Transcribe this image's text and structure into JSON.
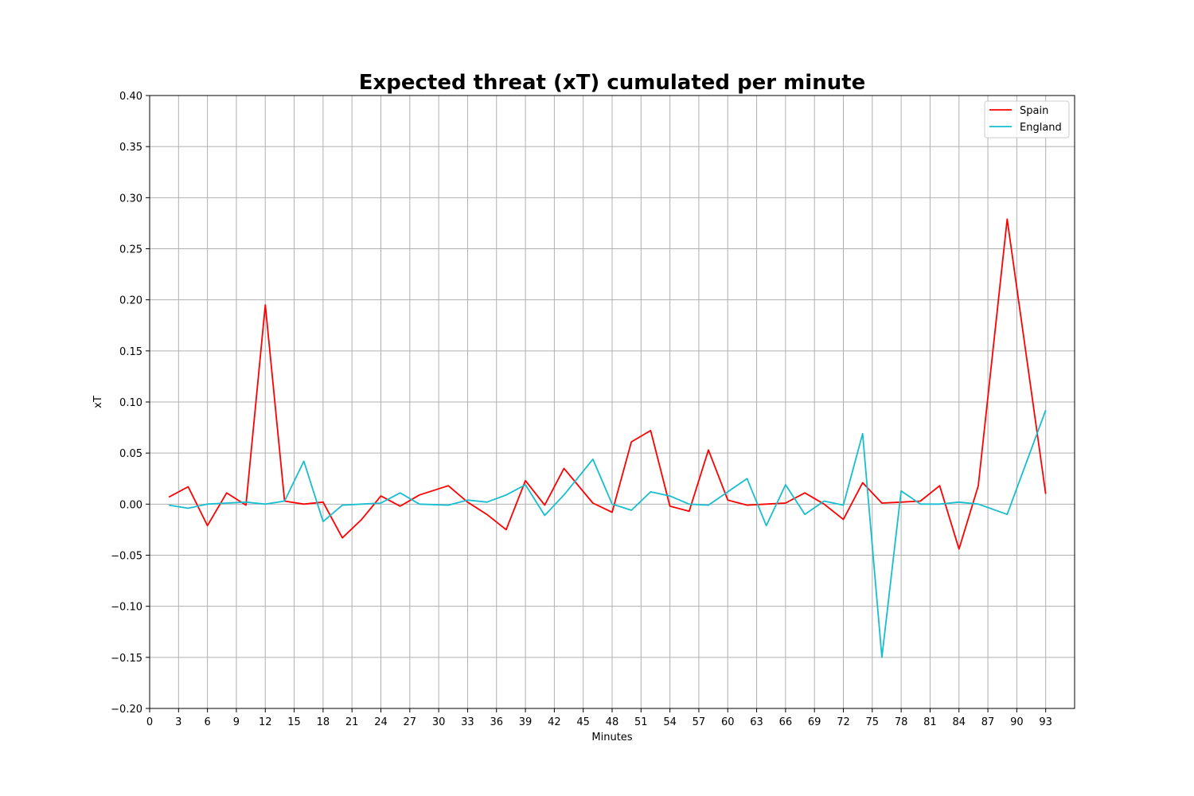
{
  "chart_data": {
    "type": "line",
    "title": "Expected threat (xT) cumulated per minute",
    "xlabel": "Minutes",
    "ylabel": "xT",
    "xlim": [
      0,
      96
    ],
    "ylim": [
      -0.2,
      0.4
    ],
    "x_ticks": [
      "0",
      "3",
      "6",
      "9",
      "12",
      "15",
      "18",
      "21",
      "24",
      "27",
      "30",
      "33",
      "36",
      "39",
      "42",
      "45",
      "48",
      "51",
      "54",
      "57",
      "60",
      "63",
      "66",
      "69",
      "72",
      "75",
      "78",
      "81",
      "84",
      "87",
      "90",
      "93"
    ],
    "y_ticks": [
      "−0.20",
      "−0.15",
      "−0.10",
      "−0.05",
      "0.00",
      "0.05",
      "0.10",
      "0.15",
      "0.20",
      "0.25",
      "0.30",
      "0.35",
      "0.40"
    ],
    "grid": true,
    "legend_position": "top-right",
    "x": [
      2,
      4,
      6,
      8,
      10,
      12,
      14,
      16,
      18,
      20,
      22,
      24,
      26,
      28,
      31,
      33,
      35,
      37,
      39,
      41,
      43,
      46,
      48,
      50,
      52,
      54,
      56,
      58,
      60,
      62,
      64,
      66,
      68,
      70,
      72,
      74,
      76,
      78,
      80,
      82,
      84,
      86,
      89,
      93
    ],
    "series": [
      {
        "name": "Spain",
        "color": "#ff0000",
        "values": [
          0.007,
          0.017,
          -0.021,
          0.011,
          -0.001,
          0.195,
          0.003,
          0.0,
          0.002,
          -0.033,
          -0.015,
          0.008,
          -0.002,
          0.009,
          0.018,
          0.002,
          -0.01,
          -0.025,
          0.023,
          -0.001,
          0.035,
          0.001,
          -0.008,
          0.061,
          0.072,
          -0.002,
          -0.007,
          0.053,
          0.004,
          -0.001,
          0.0,
          0.001,
          0.011,
          0.0,
          -0.015,
          0.021,
          0.001,
          0.002,
          0.003,
          0.018,
          -0.044,
          0.018,
          0.279,
          0.01
        ]
      },
      {
        "name": "England",
        "color": "#17becf",
        "values": [
          -0.001,
          -0.004,
          0.0,
          0.001,
          0.002,
          0.0,
          0.003,
          0.042,
          -0.017,
          -0.001,
          0.0,
          0.001,
          0.011,
          0.0,
          -0.001,
          0.004,
          0.002,
          0.009,
          0.019,
          -0.011,
          0.009,
          0.044,
          0.0,
          -0.006,
          0.012,
          0.008,
          0.0,
          -0.001,
          0.012,
          0.025,
          -0.021,
          0.019,
          -0.01,
          0.003,
          -0.001,
          0.069,
          -0.15,
          0.013,
          0.0,
          0.0,
          0.002,
          0.0,
          -0.01,
          0.092
        ]
      }
    ]
  }
}
